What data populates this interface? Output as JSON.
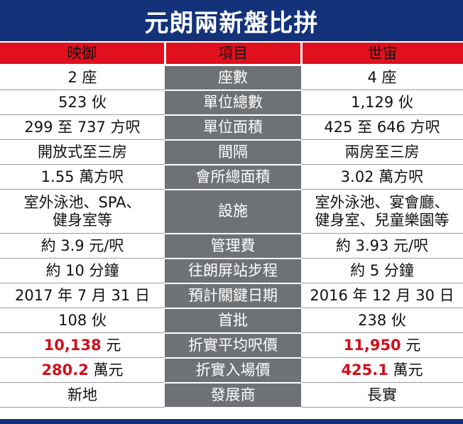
{
  "title": "元朗兩新盤比拼",
  "headers": {
    "left": "映御",
    "middle": "項目",
    "right": "世宙"
  },
  "rows": [
    {
      "label": "座數",
      "left": "2 座",
      "right": "4 座"
    },
    {
      "label": "單位總數",
      "left": "523 伙",
      "right": "1,129 伙"
    },
    {
      "label": "單位面積",
      "left": "299 至 737 方呎",
      "right": "425 至 646 方呎"
    },
    {
      "label": "間隔",
      "left": "開放式至三房",
      "right": "兩房至三房"
    },
    {
      "label": "會所總面積",
      "left": "1.55 萬方呎",
      "right": "3.02 萬方呎"
    },
    {
      "label": "設施",
      "left": "室外泳池、SPA、",
      "left2": "健身室等",
      "right": "室外泳池、宴會廳、",
      "right2": "健身室、兒童樂園等"
    },
    {
      "label": "管理費",
      "left": "約 3.9 元/呎",
      "right": "約 3.93 元/呎"
    },
    {
      "label": "往朗屏站步程",
      "left": "約 10 分鐘",
      "right": "約 5 分鐘"
    },
    {
      "label": "預計關鍵日期",
      "left": "2017 年 7 月 31 日",
      "right": "2016 年 12 月 30 日"
    },
    {
      "label": "首批",
      "left": "108 伙",
      "right": "238 伙"
    },
    {
      "label": "折實平均呎價",
      "left_num": "10,138",
      "left_unit": " 元",
      "right_num": "11,950",
      "right_unit": " 元"
    },
    {
      "label": "折實入場價",
      "left_num": "280.2",
      "left_unit": " 萬元",
      "right_num": "425.1",
      "right_unit": " 萬元"
    },
    {
      "label": "發展商",
      "left": "新地",
      "right": "長實"
    }
  ],
  "colors": {
    "title_bg": "#13327a",
    "header_bg": "#e0101e",
    "mid_bg": "#6f7275",
    "highlight": "#d1101c"
  }
}
